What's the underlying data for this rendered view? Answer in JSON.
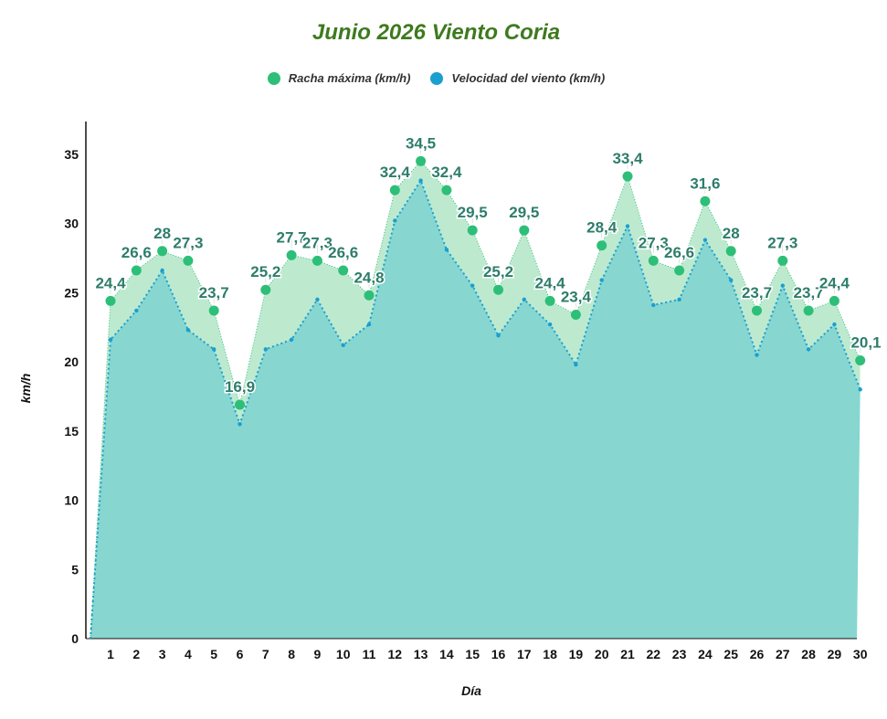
{
  "chart_data": {
    "type": "area",
    "title": "Junio 2026 Viento Coria",
    "xlabel": "Día",
    "ylabel": "km/h",
    "ylim": [
      0,
      37
    ],
    "yticks": [
      "0",
      "5",
      "10",
      "15",
      "20",
      "25",
      "30",
      "35"
    ],
    "legend_position": "top",
    "grid": false,
    "categories": [
      "1",
      "2",
      "3",
      "4",
      "5",
      "6",
      "7",
      "8",
      "9",
      "10",
      "11",
      "12",
      "13",
      "14",
      "15",
      "16",
      "17",
      "18",
      "19",
      "20",
      "21",
      "22",
      "23",
      "24",
      "25",
      "26",
      "27",
      "28",
      "29",
      "30"
    ],
    "series": [
      {
        "name": "Racha máxima (km/h)",
        "color": "#2dbf78",
        "fill": "#bdeacf",
        "values": [
          24.4,
          26.6,
          28,
          27.3,
          23.7,
          16.9,
          25.2,
          27.7,
          27.3,
          26.6,
          24.8,
          32.4,
          34.5,
          32.4,
          29.5,
          25.2,
          29.5,
          24.4,
          23.4,
          28.4,
          33.4,
          27.3,
          26.6,
          31.6,
          28,
          23.7,
          27.3,
          23.7,
          24.4,
          20.1
        ],
        "labels": [
          "24,4",
          "26,6",
          "28",
          "27,3",
          "23,7",
          "16,9",
          "25,2",
          "27,7",
          "27,3",
          "26,6",
          "24,8",
          "32,4",
          "34,5",
          "32,4",
          "29,5",
          "25,2",
          "29,5",
          "24,4",
          "23,4",
          "28,4",
          "33,4",
          "27,3",
          "26,6",
          "31,6",
          "28",
          "23,7",
          "27,3",
          "23,7",
          "24,4",
          "20,1"
        ]
      },
      {
        "name": "Velocidad del viento (km/h)",
        "color": "#1a9fd0",
        "fill": "#87d6d0",
        "values": [
          21.6,
          23.7,
          26.6,
          22.3,
          20.9,
          15.5,
          20.9,
          21.6,
          24.5,
          21.2,
          22.7,
          30.2,
          33.1,
          28.1,
          25.5,
          21.9,
          24.5,
          22.7,
          19.8,
          25.9,
          29.8,
          24.1,
          24.5,
          28.8,
          25.9,
          20.5,
          25.5,
          20.9,
          22.7,
          18.0
        ]
      }
    ]
  }
}
